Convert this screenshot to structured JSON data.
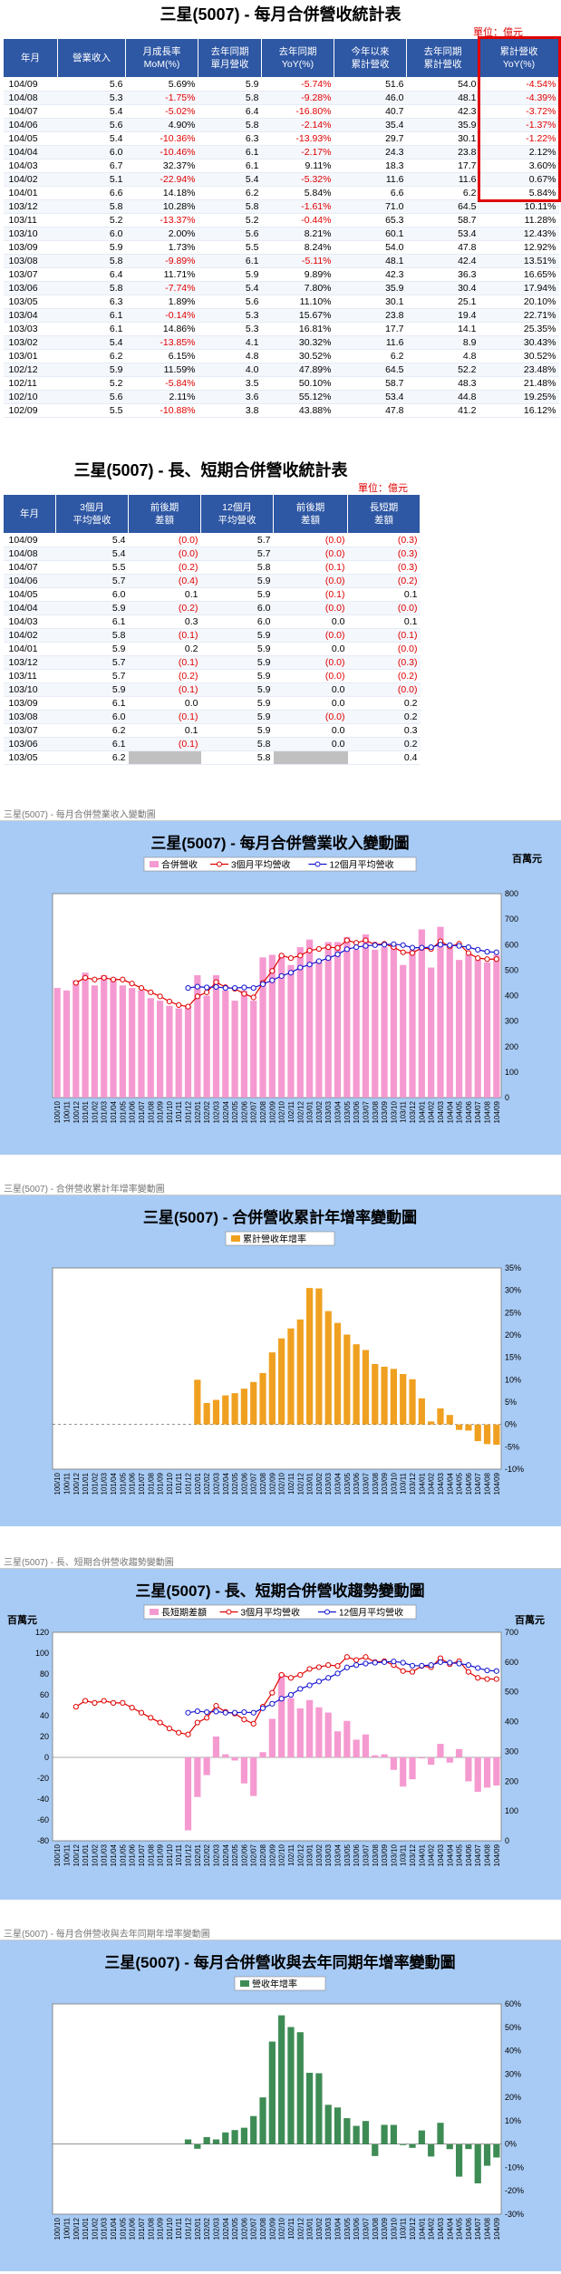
{
  "table1": {
    "title": "三星(5007) - 每月合併營收統計表",
    "unit": "單位：億元",
    "headers": [
      "年月",
      "營業收入",
      "月成長率\nMoM(%)",
      "去年同期\n單月營收",
      "去年同期\nYoY(%)",
      "今年以來\n累計營收",
      "去年同期\n累計營收",
      "累計營收\nYoY(%)"
    ],
    "rows": [
      [
        "104/09",
        "5.6",
        "5.69%",
        "5.9",
        "-5.74%",
        "51.6",
        "54.0",
        "-4.54%"
      ],
      [
        "104/08",
        "5.3",
        "-1.75%",
        "5.8",
        "-9.28%",
        "46.0",
        "48.1",
        "-4.39%"
      ],
      [
        "104/07",
        "5.4",
        "-5.02%",
        "6.4",
        "-16.80%",
        "40.7",
        "42.3",
        "-3.72%"
      ],
      [
        "104/06",
        "5.6",
        "4.90%",
        "5.8",
        "-2.14%",
        "35.4",
        "35.9",
        "-1.37%"
      ],
      [
        "104/05",
        "5.4",
        "-10.36%",
        "6.3",
        "-13.93%",
        "29.7",
        "30.1",
        "-1.22%"
      ],
      [
        "104/04",
        "6.0",
        "-10.46%",
        "6.1",
        "-2.17%",
        "24.3",
        "23.8",
        "2.12%"
      ],
      [
        "104/03",
        "6.7",
        "32.37%",
        "6.1",
        "9.11%",
        "18.3",
        "17.7",
        "3.60%"
      ],
      [
        "104/02",
        "5.1",
        "-22.94%",
        "5.4",
        "-5.32%",
        "11.6",
        "11.6",
        "0.67%"
      ],
      [
        "104/01",
        "6.6",
        "14.18%",
        "6.2",
        "5.84%",
        "6.6",
        "6.2",
        "5.84%"
      ],
      [
        "103/12",
        "5.8",
        "10.28%",
        "5.8",
        "-1.61%",
        "71.0",
        "64.5",
        "10.11%"
      ],
      [
        "103/11",
        "5.2",
        "-13.37%",
        "5.2",
        "-0.44%",
        "65.3",
        "58.7",
        "11.28%"
      ],
      [
        "103/10",
        "6.0",
        "2.00%",
        "5.6",
        "8.21%",
        "60.1",
        "53.4",
        "12.43%"
      ],
      [
        "103/09",
        "5.9",
        "1.73%",
        "5.5",
        "8.24%",
        "54.0",
        "47.8",
        "12.92%"
      ],
      [
        "103/08",
        "5.8",
        "-9.89%",
        "6.1",
        "-5.11%",
        "48.1",
        "42.4",
        "13.51%"
      ],
      [
        "103/07",
        "6.4",
        "11.71%",
        "5.9",
        "9.89%",
        "42.3",
        "36.3",
        "16.65%"
      ],
      [
        "103/06",
        "5.8",
        "-7.74%",
        "5.4",
        "7.80%",
        "35.9",
        "30.4",
        "17.94%"
      ],
      [
        "103/05",
        "6.3",
        "1.89%",
        "5.6",
        "11.10%",
        "30.1",
        "25.1",
        "20.10%"
      ],
      [
        "103/04",
        "6.1",
        "-0.14%",
        "5.3",
        "15.67%",
        "23.8",
        "19.4",
        "22.71%"
      ],
      [
        "103/03",
        "6.1",
        "14.86%",
        "5.3",
        "16.81%",
        "17.7",
        "14.1",
        "25.35%"
      ],
      [
        "103/02",
        "5.4",
        "-13.85%",
        "4.1",
        "30.32%",
        "11.6",
        "8.9",
        "30.43%"
      ],
      [
        "103/01",
        "6.2",
        "6.15%",
        "4.8",
        "30.52%",
        "6.2",
        "4.8",
        "30.52%"
      ],
      [
        "102/12",
        "5.9",
        "11.59%",
        "4.0",
        "47.89%",
        "64.5",
        "52.2",
        "23.48%"
      ],
      [
        "102/11",
        "5.2",
        "-5.84%",
        "3.5",
        "50.10%",
        "58.7",
        "48.3",
        "21.48%"
      ],
      [
        "102/10",
        "5.6",
        "2.11%",
        "3.6",
        "55.12%",
        "53.4",
        "44.8",
        "19.25%"
      ],
      [
        "102/09",
        "5.5",
        "-10.88%",
        "3.8",
        "43.88%",
        "47.8",
        "41.2",
        "16.12%"
      ]
    ]
  },
  "table2": {
    "title": "三星(5007) - 長、短期合併營收統計表",
    "unit": "單位：億元",
    "headers": [
      "年月",
      "3個月\n平均營收",
      "前後期\n差額",
      "12個月\n平均營收",
      "前後期\n差額",
      "長短期\n差額"
    ],
    "rows": [
      [
        "104/09",
        "5.4",
        "(0.0)",
        "5.7",
        "(0.0)",
        "(0.3)"
      ],
      [
        "104/08",
        "5.4",
        "(0.0)",
        "5.7",
        "(0.0)",
        "(0.3)"
      ],
      [
        "104/07",
        "5.5",
        "(0.2)",
        "5.8",
        "(0.1)",
        "(0.3)"
      ],
      [
        "104/06",
        "5.7",
        "(0.4)",
        "5.9",
        "(0.0)",
        "(0.2)"
      ],
      [
        "104/05",
        "6.0",
        "0.1",
        "5.9",
        "(0.1)",
        "0.1"
      ],
      [
        "104/04",
        "5.9",
        "(0.2)",
        "6.0",
        "(0.0)",
        "(0.0)"
      ],
      [
        "104/03",
        "6.1",
        "0.3",
        "6.0",
        "0.0",
        "0.1"
      ],
      [
        "104/02",
        "5.8",
        "(0.1)",
        "5.9",
        "(0.0)",
        "(0.1)"
      ],
      [
        "104/01",
        "5.9",
        "0.2",
        "5.9",
        "0.0",
        "(0.0)"
      ],
      [
        "103/12",
        "5.7",
        "(0.1)",
        "5.9",
        "(0.0)",
        "(0.3)"
      ],
      [
        "103/11",
        "5.7",
        "(0.2)",
        "5.9",
        "(0.0)",
        "(0.2)"
      ],
      [
        "103/10",
        "5.9",
        "(0.1)",
        "5.9",
        "0.0",
        "(0.0)"
      ],
      [
        "103/09",
        "6.1",
        "0.0",
        "5.9",
        "0.0",
        "0.2"
      ],
      [
        "103/08",
        "6.0",
        "(0.1)",
        "5.9",
        "(0.0)",
        "0.2"
      ],
      [
        "103/07",
        "6.2",
        "0.1",
        "5.9",
        "0.0",
        "0.3"
      ],
      [
        "103/06",
        "6.1",
        "(0.1)",
        "5.8",
        "0.0",
        "0.2"
      ],
      [
        "103/05",
        "6.2",
        "",
        "5.8",
        "",
        "0.4"
      ]
    ]
  },
  "charts": [
    {
      "caption": "三星(5007) - 每月合併營業收入變動圖",
      "title": "三星(5007) - 每月合併營業收入變動圖",
      "unit": "百萬元",
      "legend": [
        "合併營收",
        "3個月平均營收",
        "12個月平均營收"
      ]
    },
    {
      "caption": "三星(5007) - 合併營收累計年增率變動圖",
      "title": "三星(5007) - 合併營收累計年增率變動圖",
      "legend": [
        "累計營收年增率"
      ]
    },
    {
      "caption": "三星(5007) - 長、短期合併營收趨勢變動圖",
      "title": "三星(5007) - 長、短期合併營收趨勢變動圖",
      "unit_left": "百萬元",
      "unit_right": "百萬元",
      "legend": [
        "長短期差額",
        "3個月平均營收",
        "12個月平均營收"
      ]
    },
    {
      "caption": "三星(5007) - 每月合併營收與去年同期年增率變動圖",
      "title": "三星(5007) - 每月合併營收與去年同期年增率變動圖",
      "legend": [
        "營收年增率"
      ]
    }
  ],
  "chart_data": [
    {
      "type": "bar",
      "title": "三星(5007) - 每月合併營業收入變動圖",
      "ylim": [
        0,
        800
      ],
      "yticks": [
        "0",
        "100",
        "200",
        "300",
        "400",
        "500",
        "600",
        "700",
        "800"
      ],
      "categories": [
        "100/10",
        "100/11",
        "100/12",
        "101/01",
        "101/02",
        "101/03",
        "101/04",
        "101/05",
        "101/06",
        "101/07",
        "101/08",
        "101/09",
        "101/10",
        "101/11",
        "101/12",
        "102/01",
        "102/02",
        "102/03",
        "102/04",
        "102/05",
        "102/06",
        "102/07",
        "102/08",
        "102/09",
        "102/10",
        "102/11",
        "102/12",
        "103/01",
        "103/02",
        "103/03",
        "103/04",
        "103/05",
        "103/06",
        "103/07",
        "103/08",
        "103/09",
        "103/10",
        "103/11",
        "103/12",
        "104/01",
        "104/02",
        "104/03",
        "104/04",
        "104/05",
        "104/06",
        "104/07",
        "104/08",
        "104/09"
      ],
      "series": [
        {
          "name": "合併營收",
          "values": [
            430,
            420,
            460,
            490,
            440,
            480,
            470,
            440,
            430,
            420,
            390,
            380,
            360,
            350,
            360,
            480,
            400,
            480,
            420,
            380,
            420,
            380,
            550,
            560,
            560,
            520,
            590,
            620,
            540,
            610,
            610,
            630,
            580,
            640,
            580,
            590,
            600,
            520,
            580,
            660,
            510,
            670,
            600,
            540,
            560,
            540,
            530,
            560
          ]
        },
        {
          "name": "3個月平均營收",
          "values": [
            null,
            null,
            450,
            470,
            463,
            470,
            463,
            463,
            447,
            430,
            413,
            397,
            377,
            363,
            357,
            397,
            413,
            453,
            433,
            427,
            407,
            393,
            450,
            497,
            557,
            547,
            557,
            577,
            583,
            590,
            587,
            617,
            607,
            617,
            600,
            603,
            590,
            570,
            567,
            587,
            583,
            613,
            593,
            603,
            567,
            547,
            543,
            543
          ]
        },
        {
          "name": "12個月平均營收",
          "values": [
            null,
            null,
            null,
            null,
            null,
            null,
            null,
            null,
            null,
            null,
            null,
            null,
            null,
            null,
            430,
            435,
            432,
            434,
            430,
            430,
            432,
            430,
            445,
            460,
            477,
            490,
            510,
            522,
            535,
            547,
            562,
            582,
            590,
            595,
            598,
            600,
            602,
            598,
            588,
            588,
            590,
            600,
            598,
            595,
            590,
            580,
            572,
            570
          ]
        }
      ]
    },
    {
      "type": "bar",
      "title": "三星(5007) - 合併營收累計年增率變動圖",
      "ylim": [
        -10,
        35
      ],
      "yticks": [
        "-10%",
        "-5%",
        "0%",
        "5%",
        "10%",
        "15%",
        "20%",
        "25%",
        "30%",
        "35%"
      ],
      "categories": [
        "100/10",
        "100/11",
        "100/12",
        "101/01",
        "101/02",
        "101/03",
        "101/04",
        "101/05",
        "101/06",
        "101/07",
        "101/08",
        "101/09",
        "101/10",
        "101/11",
        "101/12",
        "102/01",
        "102/02",
        "102/03",
        "102/04",
        "102/05",
        "102/06",
        "102/07",
        "102/08",
        "102/09",
        "102/10",
        "102/11",
        "102/12",
        "103/01",
        "103/02",
        "103/03",
        "103/04",
        "103/05",
        "103/06",
        "103/07",
        "103/08",
        "103/09",
        "103/10",
        "103/11",
        "103/12",
        "104/01",
        "104/02",
        "104/03",
        "104/04",
        "104/05",
        "104/06",
        "104/07",
        "104/08",
        "104/09"
      ],
      "series": [
        {
          "name": "累計營收年增率",
          "values": [
            0,
            0,
            0,
            0,
            0,
            0,
            0,
            0,
            0,
            0,
            0,
            0,
            0,
            0,
            0,
            10.0,
            4.8,
            5.5,
            6.5,
            7.0,
            8.0,
            9.5,
            11.5,
            16.12,
            19.25,
            21.48,
            23.48,
            30.52,
            30.43,
            25.35,
            22.71,
            20.1,
            17.94,
            16.65,
            13.51,
            12.92,
            12.43,
            11.28,
            10.11,
            5.84,
            0.67,
            3.6,
            2.12,
            -1.22,
            -1.37,
            -3.72,
            -4.39,
            -4.54
          ]
        }
      ]
    },
    {
      "type": "bar",
      "title": "三星(5007) - 長、短期合併營收趨勢變動圖",
      "ylim": [
        -80,
        120
      ],
      "ylim_right": [
        0,
        700
      ],
      "yticks": [
        "-80",
        "-60",
        "-40",
        "-20",
        "0",
        "20",
        "40",
        "60",
        "80",
        "100",
        "120"
      ],
      "yticks_right": [
        "0",
        "100",
        "200",
        "300",
        "400",
        "500",
        "600",
        "700"
      ],
      "categories": [
        "100/10",
        "100/11",
        "100/12",
        "101/01",
        "101/02",
        "101/03",
        "101/04",
        "101/05",
        "101/06",
        "101/07",
        "101/08",
        "101/09",
        "101/10",
        "101/11",
        "101/12",
        "102/01",
        "102/02",
        "102/03",
        "102/04",
        "102/05",
        "102/06",
        "102/07",
        "102/08",
        "102/09",
        "102/10",
        "102/11",
        "102/12",
        "103/01",
        "103/02",
        "103/03",
        "103/04",
        "103/05",
        "103/06",
        "103/07",
        "103/08",
        "103/09",
        "103/10",
        "103/11",
        "103/12",
        "104/01",
        "104/02",
        "104/03",
        "104/04",
        "104/05",
        "104/06",
        "104/07",
        "104/08",
        "104/09"
      ],
      "series": [
        {
          "name": "長短期差額",
          "values": [
            null,
            null,
            null,
            null,
            null,
            null,
            null,
            null,
            null,
            null,
            null,
            null,
            null,
            null,
            -70,
            -38,
            -17,
            20,
            3,
            -3,
            -25,
            -37,
            5,
            37,
            80,
            57,
            47,
            55,
            48,
            43,
            25,
            35,
            17,
            22,
            2,
            3,
            -12,
            -28,
            -21,
            -1,
            -7,
            13,
            -5,
            8,
            -23,
            -33,
            -29,
            -27
          ]
        },
        {
          "name": "3個月平均營收",
          "values": [
            null,
            null,
            450,
            470,
            463,
            470,
            463,
            463,
            447,
            430,
            413,
            397,
            377,
            363,
            357,
            397,
            413,
            453,
            433,
            427,
            407,
            393,
            450,
            497,
            557,
            547,
            557,
            577,
            583,
            590,
            587,
            617,
            607,
            617,
            600,
            603,
            590,
            570,
            567,
            587,
            583,
            613,
            593,
            603,
            567,
            547,
            543,
            543
          ]
        },
        {
          "name": "12個月平均營收",
          "values": [
            null,
            null,
            null,
            null,
            null,
            null,
            null,
            null,
            null,
            null,
            null,
            null,
            null,
            null,
            430,
            435,
            432,
            434,
            430,
            430,
            432,
            430,
            445,
            460,
            477,
            490,
            510,
            522,
            535,
            547,
            562,
            582,
            590,
            595,
            598,
            600,
            602,
            598,
            588,
            588,
            590,
            600,
            598,
            595,
            590,
            580,
            572,
            570
          ]
        }
      ]
    },
    {
      "type": "bar",
      "title": "三星(5007) - 每月合併營收與去年同期年增率變動圖",
      "ylim": [
        -30,
        60
      ],
      "yticks": [
        "-30%",
        "-20%",
        "-10%",
        "0%",
        "10%",
        "20%",
        "30%",
        "40%",
        "50%",
        "60%"
      ],
      "categories": [
        "100/10",
        "100/11",
        "100/12",
        "101/01",
        "101/02",
        "101/03",
        "101/04",
        "101/05",
        "101/06",
        "101/07",
        "101/08",
        "101/09",
        "101/10",
        "101/11",
        "101/12",
        "102/01",
        "102/02",
        "102/03",
        "102/04",
        "102/05",
        "102/06",
        "102/07",
        "102/08",
        "102/09",
        "102/10",
        "102/11",
        "102/12",
        "103/01",
        "103/02",
        "103/03",
        "103/04",
        "103/05",
        "103/06",
        "103/07",
        "103/08",
        "103/09",
        "103/10",
        "103/11",
        "103/12",
        "104/01",
        "104/02",
        "104/03",
        "104/04",
        "104/05",
        "104/06",
        "104/07",
        "104/08",
        "104/09"
      ],
      "series": [
        {
          "name": "營收年增率",
          "values": [
            0,
            0,
            0,
            0,
            0,
            0,
            0,
            0,
            0,
            0,
            0,
            0,
            0,
            0,
            2,
            -2,
            3,
            2,
            5,
            6,
            7,
            12,
            20,
            43.88,
            55.12,
            50.1,
            47.89,
            30.52,
            30.32,
            16.81,
            15.67,
            11.1,
            7.8,
            9.89,
            -5.11,
            8.24,
            8.21,
            -0.44,
            -1.61,
            5.84,
            -5.32,
            9.11,
            -2.17,
            -13.93,
            -2.14,
            -16.8,
            -9.28,
            -5.74
          ]
        }
      ]
    }
  ]
}
